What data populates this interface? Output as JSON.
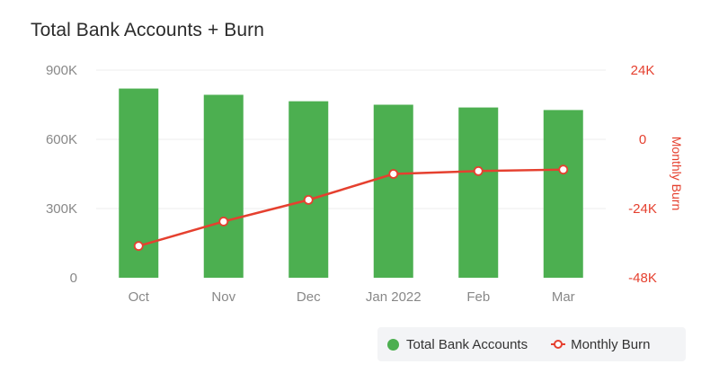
{
  "header": {
    "title": "Total Bank Accounts + Burn"
  },
  "colors": {
    "bars": "#4caf50",
    "line": "#e5402f",
    "left_axis_text": "#888888",
    "right_axis_text": "#e5402f",
    "grid": "#eeeeee"
  },
  "chart_data": {
    "type": "bar+line",
    "title": "Total Bank Accounts + Burn",
    "categories": [
      "Oct",
      "Nov",
      "Dec",
      "Jan 2022",
      "Feb",
      "Mar"
    ],
    "series": [
      {
        "name": "Total Bank Accounts",
        "type": "bar",
        "axis": "left",
        "values": [
          820000,
          793000,
          765000,
          750000,
          738000,
          727000
        ]
      },
      {
        "name": "Monthly Burn",
        "type": "line",
        "axis": "right",
        "values": [
          -37000,
          -28500,
          -21000,
          -12000,
          -11000,
          -10500
        ]
      }
    ],
    "y_left": {
      "label": "",
      "ylim": [
        0,
        900000
      ],
      "ticks": [
        0,
        300000,
        600000,
        900000
      ],
      "tick_labels": [
        "0",
        "300K",
        "600K",
        "900K"
      ]
    },
    "y_right": {
      "label": "Monthly Burn",
      "ylim": [
        -48000,
        24000
      ],
      "ticks": [
        -48000,
        -24000,
        0,
        24000
      ],
      "tick_labels": [
        "-48K",
        "-24K",
        "0",
        "24K"
      ]
    },
    "grid": true,
    "legend_position": "bottom-right"
  }
}
